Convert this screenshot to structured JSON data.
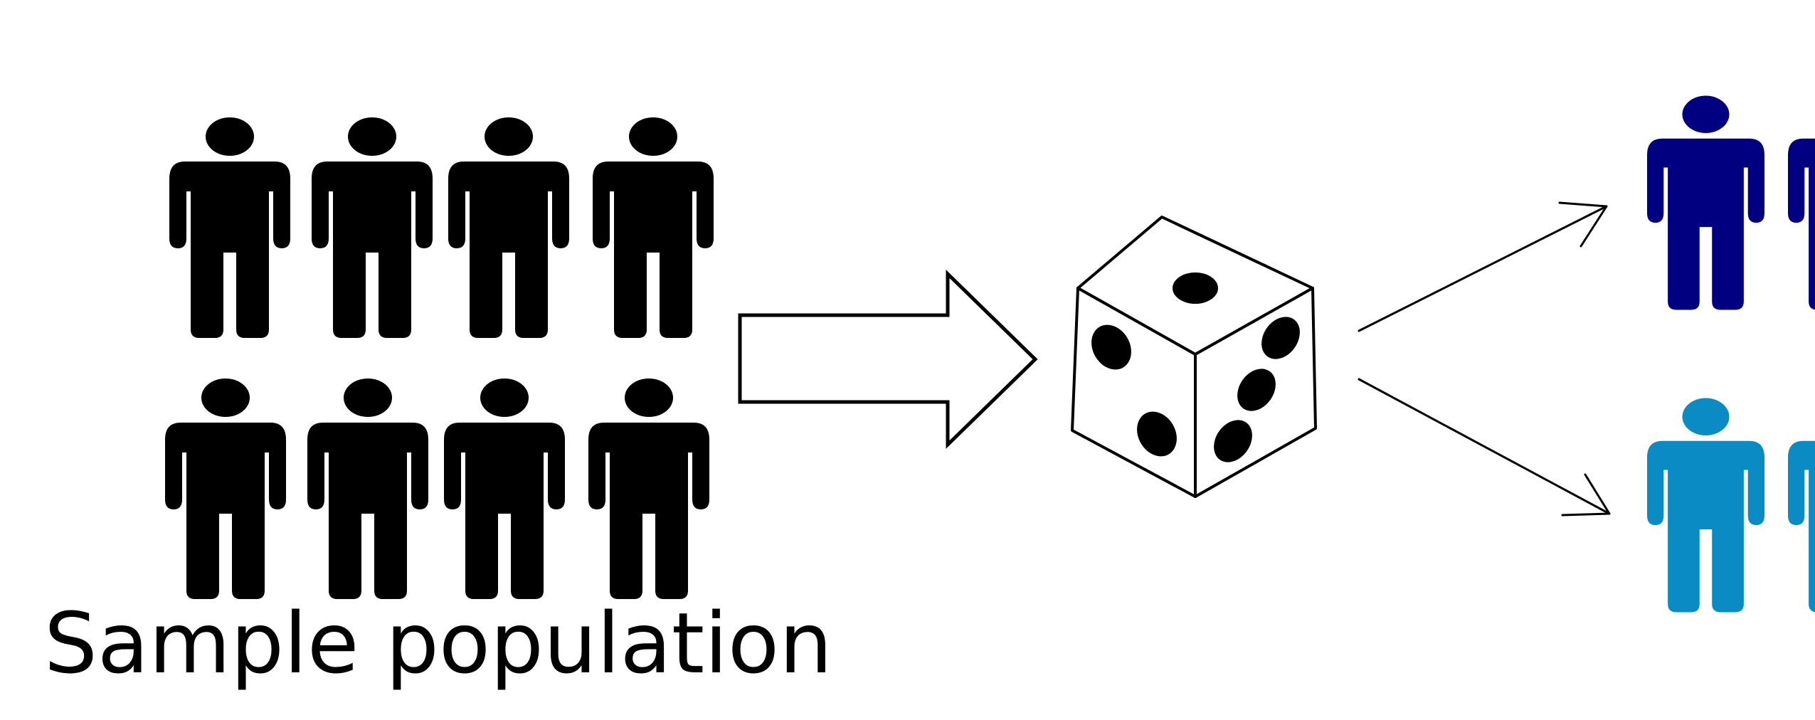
{
  "caption": "Sample population",
  "colors": {
    "population": "#000000",
    "group_top": "#000080",
    "group_bottom": "#0a8bc3",
    "outline": "#000000",
    "background": "#ffffff"
  },
  "population": {
    "rows": 2,
    "per_row": 4,
    "icon": "person-icon"
  },
  "randomizer": {
    "icon": "die-icon",
    "faces": {
      "top": 1,
      "left": 2,
      "right": 3
    }
  },
  "groups": [
    {
      "name": "group-top",
      "icon": "person-icon",
      "color_key": "group_top"
    },
    {
      "name": "group-bottom",
      "icon": "person-icon",
      "color_key": "group_bottom"
    }
  ]
}
